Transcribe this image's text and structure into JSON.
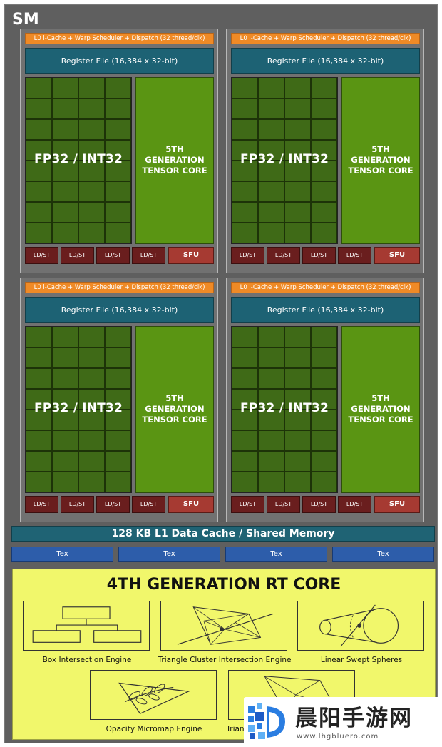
{
  "sm": {
    "title": "SM"
  },
  "quadrant": {
    "l0_label": "L0 i-Cache + Warp Scheduler + Dispatch (32 thread/clk)",
    "register_file": "Register File (16,384 x 32-bit)",
    "fp_label": "FP32 / INT32",
    "tensor_line1": "5TH",
    "tensor_line2": "GENERATION",
    "tensor_line3": "TENSOR CORE",
    "ldst_label": "LD/ST",
    "sfu_label": "SFU"
  },
  "l1_cache": "128 KB L1 Data Cache / Shared Memory",
  "tex_label": "Tex",
  "rt_core": {
    "title": "4TH GENERATION RT CORE",
    "engines": [
      "Box Intersection Engine",
      "Triangle Cluster Intersection Engine",
      "Linear Swept Spheres",
      "Opacity Micromap Engine",
      "Triangle"
    ]
  },
  "watermark": {
    "title": "晨阳手游网",
    "url": "www.lhgbluero.com"
  },
  "colors": {
    "l0": "#ef8a26",
    "register_file": "#1d6274",
    "fp32_block": "#3d6518",
    "tensor_core": "#5a9513",
    "ldst": "#6a1e1e",
    "sfu": "#a63a32",
    "tex": "#2d5daa",
    "rt_core": "#f1f76b"
  }
}
